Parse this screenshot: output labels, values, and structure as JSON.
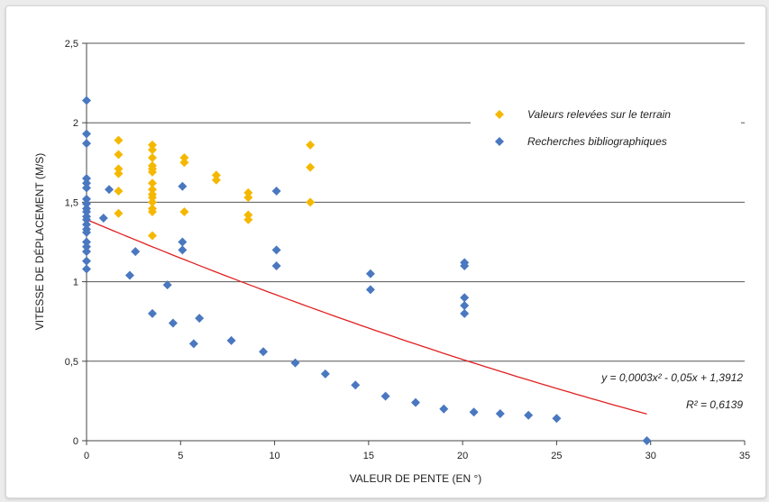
{
  "chart_data": {
    "type": "scatter",
    "title": "",
    "xlabel": "VALEUR DE PENTE (EN °)",
    "ylabel": "VITESSE DE DÉPLACEMENT (M/S)",
    "xlim": [
      0,
      35
    ],
    "ylim": [
      0,
      2.5
    ],
    "xticks": [
      "0",
      "5",
      "10",
      "15",
      "20",
      "25",
      "30",
      "35"
    ],
    "yticks": [
      "0",
      "0,5",
      "1",
      "1,5",
      "2",
      "2,5"
    ],
    "grid": "horizontal",
    "legend_position": "top-right",
    "colors": {
      "terrain": "#f5b800",
      "biblio": "#4a78c0",
      "trendline": "#e02020",
      "grid": "#555555"
    },
    "series": [
      {
        "name": "Valeurs relevées sur le terrain",
        "marker": "diamond",
        "points": [
          [
            1.7,
            1.89
          ],
          [
            1.7,
            1.8
          ],
          [
            1.7,
            1.71
          ],
          [
            1.7,
            1.68
          ],
          [
            1.7,
            1.57
          ],
          [
            1.7,
            1.43
          ],
          [
            3.5,
            1.86
          ],
          [
            3.5,
            1.83
          ],
          [
            3.5,
            1.78
          ],
          [
            3.5,
            1.73
          ],
          [
            3.5,
            1.71
          ],
          [
            3.5,
            1.69
          ],
          [
            3.5,
            1.62
          ],
          [
            3.5,
            1.58
          ],
          [
            3.5,
            1.55
          ],
          [
            3.5,
            1.53
          ],
          [
            3.5,
            1.5
          ],
          [
            3.5,
            1.46
          ],
          [
            3.5,
            1.44
          ],
          [
            3.5,
            1.29
          ],
          [
            5.2,
            1.78
          ],
          [
            5.2,
            1.75
          ],
          [
            5.2,
            1.44
          ],
          [
            6.9,
            1.67
          ],
          [
            6.9,
            1.64
          ],
          [
            8.6,
            1.56
          ],
          [
            8.6,
            1.53
          ],
          [
            8.6,
            1.42
          ],
          [
            8.6,
            1.39
          ],
          [
            11.9,
            1.86
          ],
          [
            11.9,
            1.72
          ],
          [
            11.9,
            1.5
          ]
        ]
      },
      {
        "name": "Recherches bibliographiques",
        "marker": "diamond",
        "points": [
          [
            0,
            2.14
          ],
          [
            0,
            1.93
          ],
          [
            0,
            1.87
          ],
          [
            0,
            1.65
          ],
          [
            0,
            1.62
          ],
          [
            0,
            1.59
          ],
          [
            0,
            1.52
          ],
          [
            0,
            1.49
          ],
          [
            0,
            1.46
          ],
          [
            0,
            1.44
          ],
          [
            0,
            1.41
          ],
          [
            0,
            1.39
          ],
          [
            0,
            1.36
          ],
          [
            0,
            1.33
          ],
          [
            0,
            1.31
          ],
          [
            0,
            1.25
          ],
          [
            0,
            1.22
          ],
          [
            0,
            1.19
          ],
          [
            0,
            1.13
          ],
          [
            0,
            1.08
          ],
          [
            0.9,
            1.4
          ],
          [
            1.2,
            1.58
          ],
          [
            2.3,
            1.04
          ],
          [
            2.6,
            1.19
          ],
          [
            3.5,
            0.8
          ],
          [
            4.3,
            0.98
          ],
          [
            4.6,
            0.74
          ],
          [
            5.1,
            1.6
          ],
          [
            5.1,
            1.25
          ],
          [
            5.1,
            1.2
          ],
          [
            5.7,
            0.61
          ],
          [
            6.0,
            0.77
          ],
          [
            7.7,
            0.63
          ],
          [
            10.1,
            1.57
          ],
          [
            10.1,
            1.2
          ],
          [
            10.1,
            1.1
          ],
          [
            9.4,
            0.56
          ],
          [
            11.1,
            0.49
          ],
          [
            12.7,
            0.42
          ],
          [
            14.3,
            0.35
          ],
          [
            15.1,
            1.05
          ],
          [
            15.1,
            0.95
          ],
          [
            15.9,
            0.28
          ],
          [
            17.5,
            0.24
          ],
          [
            20.1,
            1.12
          ],
          [
            20.1,
            1.1
          ],
          [
            20.1,
            0.9
          ],
          [
            20.1,
            0.85
          ],
          [
            20.1,
            0.8
          ],
          [
            19.0,
            0.2
          ],
          [
            20.6,
            0.18
          ],
          [
            22.0,
            0.17
          ],
          [
            23.5,
            0.16
          ],
          [
            25.0,
            0.14
          ],
          [
            29.8,
            0.0
          ]
        ]
      }
    ],
    "trendline": {
      "type": "polynomial",
      "coefficients": [
        0.0003,
        -0.05,
        1.3912
      ],
      "x_range": [
        0,
        29.8
      ],
      "equation": "y = 0,0003x² - 0,05x + 1,3912",
      "r2": "R² = 0,6139"
    }
  }
}
